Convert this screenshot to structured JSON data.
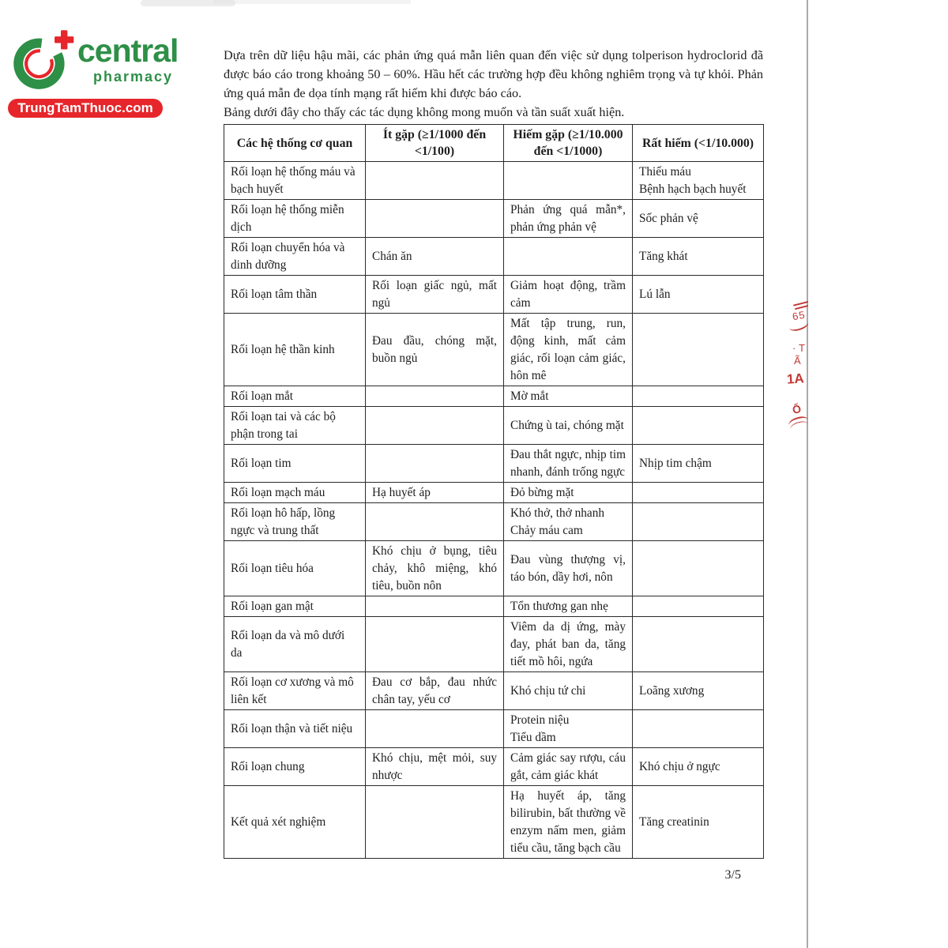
{
  "logo": {
    "brand": "central",
    "tagline": "pharmacy",
    "website": "TrungTamThuoc.com",
    "green": "#2e8f47",
    "red": "#e6262b"
  },
  "intro": {
    "paragraph1": "Dựa trên dữ liệu hậu mãi, các phản ứng quá mẫn liên quan đến việc sử dụng tolperison hydroclorid đã được báo cáo trong khoảng 50 – 60%. Hầu hết các trường hợp đều không nghiêm trọng và tự khỏi. Phản ứng quá mẫn đe dọa tính mạng rất hiếm khi được báo cáo.",
    "paragraph2": "Bảng dưới đây cho thấy các tác dụng không mong muốn và tần suất xuất hiện."
  },
  "table": {
    "headers": [
      "Các hệ thống cơ quan",
      "Ít gặp (≥1/1000 đến <1/100)",
      "Hiếm gặp (≥1/10.000 đến <1/1000)",
      "Rất hiếm (<1/10.000)"
    ],
    "rows": [
      {
        "cells": [
          "Rối loạn hệ thống máu và bạch huyết",
          "",
          "",
          "Thiếu máu\nBệnh hạch bạch huyết"
        ]
      },
      {
        "cells": [
          "Rối loạn hệ thống miễn dịch",
          "",
          "Phản ứng quá mẫn*, phản ứng phản vệ",
          "Sốc phản vệ"
        ]
      },
      {
        "cells": [
          "Rối loạn chuyển hóa và dinh dưỡng",
          "Chán ăn",
          "",
          "Tăng khát"
        ]
      },
      {
        "cells": [
          "Rối loạn tâm thần",
          "Rối loạn giấc ngủ, mất ngủ",
          "Giảm hoạt động, trầm cảm",
          "Lú lẫn"
        ]
      },
      {
        "cells": [
          "Rối loạn hệ thần kinh",
          "Đau đầu, chóng mặt, buồn ngủ",
          "Mất tập trung, run, động kinh, mất cảm giác, rối loạn cảm giác, hôn mê",
          ""
        ]
      },
      {
        "cells": [
          "Rối loạn mắt",
          "",
          "Mờ mắt",
          ""
        ]
      },
      {
        "cells": [
          "Rối loạn tai và các bộ phận trong tai",
          "",
          "Chứng ù tai, chóng mặt",
          ""
        ]
      },
      {
        "cells": [
          "Rối loạn tim",
          "",
          "Đau thắt ngực, nhịp tim nhanh, đánh trống ngực",
          "Nhịp tim chậm"
        ]
      },
      {
        "cells": [
          "Rối loạn mạch máu",
          "Hạ huyết áp",
          "Đỏ bừng mặt",
          ""
        ]
      },
      {
        "cells": [
          "Rối loạn hô hấp, lồng ngực và trung thất",
          "",
          "Khó thở, thở nhanh\nChảy máu cam",
          ""
        ]
      },
      {
        "cells": [
          "Rối loạn tiêu hóa",
          "Khó chịu ở bụng, tiêu chảy, khô miệng, khó tiêu, buồn nôn",
          "Đau vùng thượng vị, táo bón, dầy hơi, nôn",
          ""
        ]
      },
      {
        "cells": [
          "Rối loạn gan mật",
          "",
          "Tổn thương gan nhẹ",
          ""
        ]
      },
      {
        "cells": [
          "Rối loạn da và mô dưới da",
          "",
          "Viêm da dị ứng, mày đay, phát ban da, tăng tiết mồ hôi, ngứa",
          ""
        ]
      },
      {
        "cells": [
          "Rối loạn cơ xương và mô liên kết",
          "Đau cơ bắp, đau nhức chân tay, yếu cơ",
          "Khó chịu tứ chi",
          "Loãng xương"
        ]
      },
      {
        "cells": [
          "Rối loạn thận và tiết niệu",
          "",
          "Protein niệu\nTiểu dầm",
          ""
        ]
      },
      {
        "cells": [
          "Rối loạn chung",
          "Khó chịu, mệt mỏi, suy nhược",
          "Cảm giác say rượu, cáu gắt, cảm giác khát",
          "Khó chịu ở ngực"
        ]
      },
      {
        "cells": [
          "Kết quả xét nghiệm",
          "",
          "Hạ huyết áp, tăng bilirubin, bất thường về enzym nấm men, giảm tiểu cầu, tăng bạch cầu",
          "Tăng creatinin"
        ]
      }
    ]
  },
  "stamp": {
    "fragments": [
      "65",
      "T",
      "Ã",
      "1A",
      "Ố"
    ],
    "color": "#c23a36"
  },
  "page": {
    "number": "3/5"
  }
}
